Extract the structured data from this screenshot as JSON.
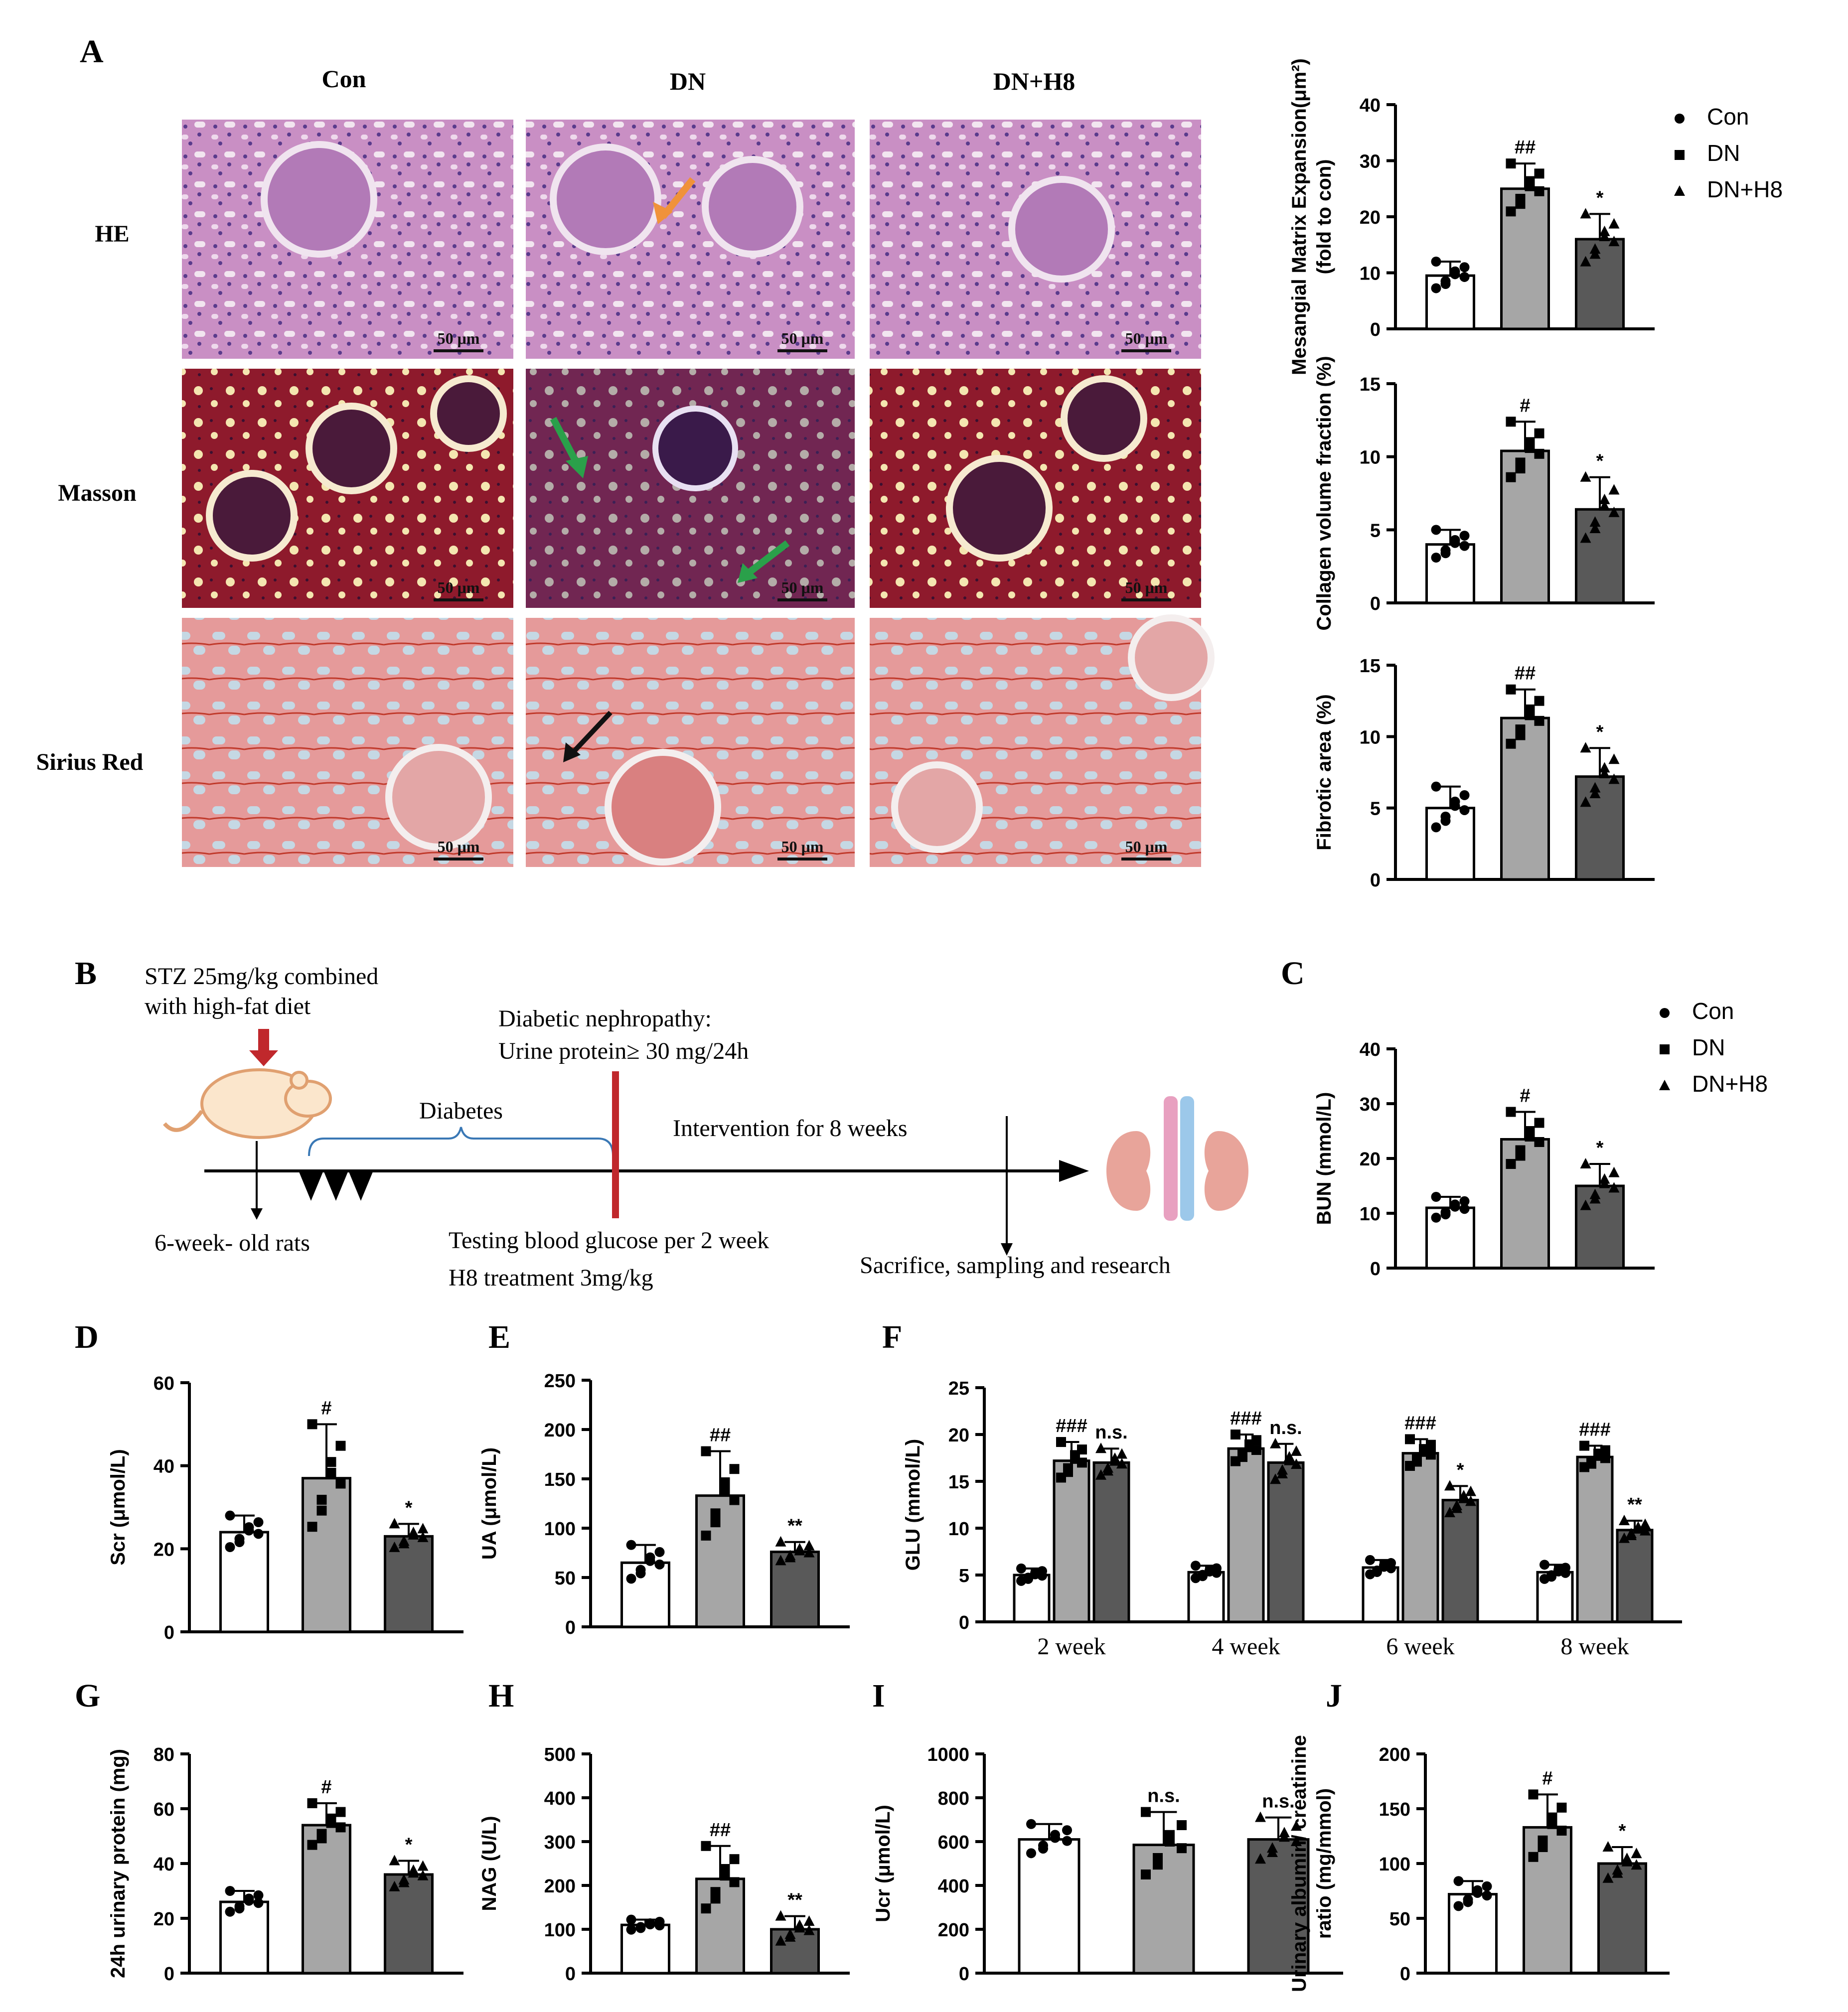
{
  "panel_letters": {
    "A": "A",
    "B": "B",
    "C": "C",
    "D": "D",
    "E": "E",
    "F": "F",
    "G": "G",
    "H": "H",
    "I": "I",
    "J": "J"
  },
  "groups": [
    "Con",
    "DN",
    "DN+H8"
  ],
  "histology": {
    "rows": [
      "HE",
      "Masson",
      "Sirius Red"
    ],
    "scale_bar": "50 μm"
  },
  "legend": [
    "Con",
    "DN",
    "DN+H8"
  ],
  "colors": {
    "con": "#ffffff",
    "dn": "#a6a6a6",
    "h8": "#595959",
    "axis": "#000000"
  },
  "timeline": {
    "stz_line1": "STZ 25mg/kg combined",
    "stz_line2": "with high-fat diet",
    "rats": "6-week- old rats",
    "diabetes": "Diabetes",
    "dn_line1": "Diabetic nephropathy:",
    "dn_line2": "Urine protein≥ 30 mg/24h",
    "intervention": "Intervention for 8 weeks",
    "test_line1": "Testing blood glucose per 2 week",
    "test_line2": "H8 treatment 3mg/kg",
    "sacrifice": "Sacrifice, sampling and research"
  },
  "chart_data": [
    {
      "id": "mesangial",
      "type": "bar",
      "ylabel_lines": [
        "Mesangial Matrix Expansion(μm²)",
        "(fold to con)"
      ],
      "ylim": [
        0,
        40
      ],
      "yticks": [
        0,
        10,
        20,
        30,
        40
      ],
      "categories": [
        "Con",
        "DN",
        "DN+H8"
      ],
      "values": [
        9.5,
        25,
        16
      ],
      "errors": [
        2.5,
        4.5,
        4.5
      ],
      "annotations": [
        "",
        "##",
        "*"
      ]
    },
    {
      "id": "collagen",
      "type": "bar",
      "ylabel_lines": [
        "Collagen volume fraction (%)"
      ],
      "ylim": [
        0,
        15
      ],
      "yticks": [
        0,
        5,
        10,
        15
      ],
      "categories": [
        "Con",
        "DN",
        "DN+H8"
      ],
      "values": [
        4,
        10.4,
        6.4
      ],
      "errors": [
        1,
        2,
        2.2
      ],
      "annotations": [
        "",
        "#",
        "*"
      ]
    },
    {
      "id": "fibrotic",
      "type": "bar",
      "ylabel_lines": [
        "Fibrotic area (%)"
      ],
      "ylim": [
        0,
        15
      ],
      "yticks": [
        0,
        5,
        10,
        15
      ],
      "categories": [
        "Con",
        "DN",
        "DN+H8"
      ],
      "values": [
        5,
        11.3,
        7.2
      ],
      "errors": [
        1.5,
        2,
        2
      ],
      "annotations": [
        "",
        "##",
        "*"
      ]
    },
    {
      "id": "bun",
      "type": "bar",
      "ylabel_lines": [
        "BUN (mmol/L)"
      ],
      "ylim": [
        0,
        40
      ],
      "yticks": [
        0,
        10,
        20,
        30,
        40
      ],
      "categories": [
        "Con",
        "DN",
        "DN+H8"
      ],
      "values": [
        11,
        23.5,
        15
      ],
      "errors": [
        2,
        5,
        4
      ],
      "annotations": [
        "",
        "#",
        "*"
      ]
    },
    {
      "id": "scr",
      "type": "bar",
      "ylabel_lines": [
        "Scr (μmol/L)"
      ],
      "ylim": [
        0,
        60
      ],
      "yticks": [
        0,
        20,
        40,
        60
      ],
      "categories": [
        "Con",
        "DN",
        "DN+H8"
      ],
      "values": [
        24,
        37,
        23
      ],
      "errors": [
        4,
        13,
        3
      ],
      "annotations": [
        "",
        "#",
        "*"
      ]
    },
    {
      "id": "ua",
      "type": "bar",
      "ylabel_lines": [
        "UA (μmol/L)"
      ],
      "ylim": [
        0,
        250
      ],
      "yticks": [
        0,
        50,
        100,
        150,
        200,
        250
      ],
      "categories": [
        "Con",
        "DN",
        "DN+H8"
      ],
      "values": [
        65,
        133,
        76
      ],
      "errors": [
        18,
        45,
        10
      ],
      "annotations": [
        "",
        "##",
        "**"
      ]
    },
    {
      "id": "glu",
      "type": "bar",
      "ylabel_lines": [
        "GLU (mmol/L)"
      ],
      "ylim": [
        0,
        25
      ],
      "yticks": [
        0,
        5,
        10,
        15,
        20,
        25
      ],
      "categories": [
        "2 week",
        "4 week",
        "6 week",
        "8 week"
      ],
      "series": [
        {
          "values": [
            5,
            5.3,
            5.8,
            5.3
          ],
          "errors": [
            0.7,
            0.7,
            0.8,
            0.8
          ]
        },
        {
          "values": [
            17.2,
            18.5,
            18,
            17.6
          ],
          "errors": [
            2,
            1.5,
            1.5,
            1.2
          ]
        },
        {
          "values": [
            17,
            17,
            13,
            9.8
          ],
          "errors": [
            1.5,
            2,
            1.5,
            1
          ]
        }
      ],
      "annotations": [
        [
          "",
          "###",
          "n.s."
        ],
        [
          "",
          "###",
          "n.s."
        ],
        [
          "",
          "###",
          "*"
        ],
        [
          "",
          "###",
          "**"
        ]
      ]
    },
    {
      "id": "urinary_protein",
      "type": "bar",
      "ylabel_lines": [
        "24h urinary protein (mg)"
      ],
      "ylim": [
        0,
        80
      ],
      "yticks": [
        0,
        20,
        40,
        60,
        80
      ],
      "categories": [
        "Con",
        "DN",
        "DN+H8"
      ],
      "values": [
        26,
        54,
        36
      ],
      "errors": [
        4,
        8,
        5
      ],
      "annotations": [
        "",
        "#",
        "*"
      ]
    },
    {
      "id": "nag",
      "type": "bar",
      "ylabel_lines": [
        "NAG (U/L)"
      ],
      "ylim": [
        0,
        500
      ],
      "yticks": [
        0,
        100,
        200,
        300,
        400,
        500
      ],
      "categories": [
        "Con",
        "DN",
        "DN+H8"
      ],
      "values": [
        110,
        215,
        100
      ],
      "errors": [
        12,
        75,
        30
      ],
      "annotations": [
        "",
        "##",
        "**"
      ]
    },
    {
      "id": "ucr",
      "type": "bar",
      "ylabel_lines": [
        "Ucr (μmol/L)"
      ],
      "ylim": [
        0,
        1000
      ],
      "yticks": [
        0,
        200,
        400,
        600,
        800,
        1000
      ],
      "categories": [
        "Con",
        "DN",
        "DN+H8"
      ],
      "values": [
        610,
        585,
        610
      ],
      "errors": [
        70,
        150,
        100
      ],
      "annotations": [
        "",
        "n.s.",
        "n.s."
      ]
    },
    {
      "id": "acr",
      "type": "bar",
      "ylabel_lines": [
        "Urinary albumin/ creatinine",
        "ratio (mg/mmol)"
      ],
      "ylim": [
        0,
        200
      ],
      "yticks": [
        0,
        50,
        100,
        150,
        200
      ],
      "categories": [
        "Con",
        "DN",
        "DN+H8"
      ],
      "values": [
        72,
        133,
        100
      ],
      "errors": [
        12,
        30,
        15
      ],
      "annotations": [
        "",
        "#",
        "*"
      ]
    }
  ]
}
